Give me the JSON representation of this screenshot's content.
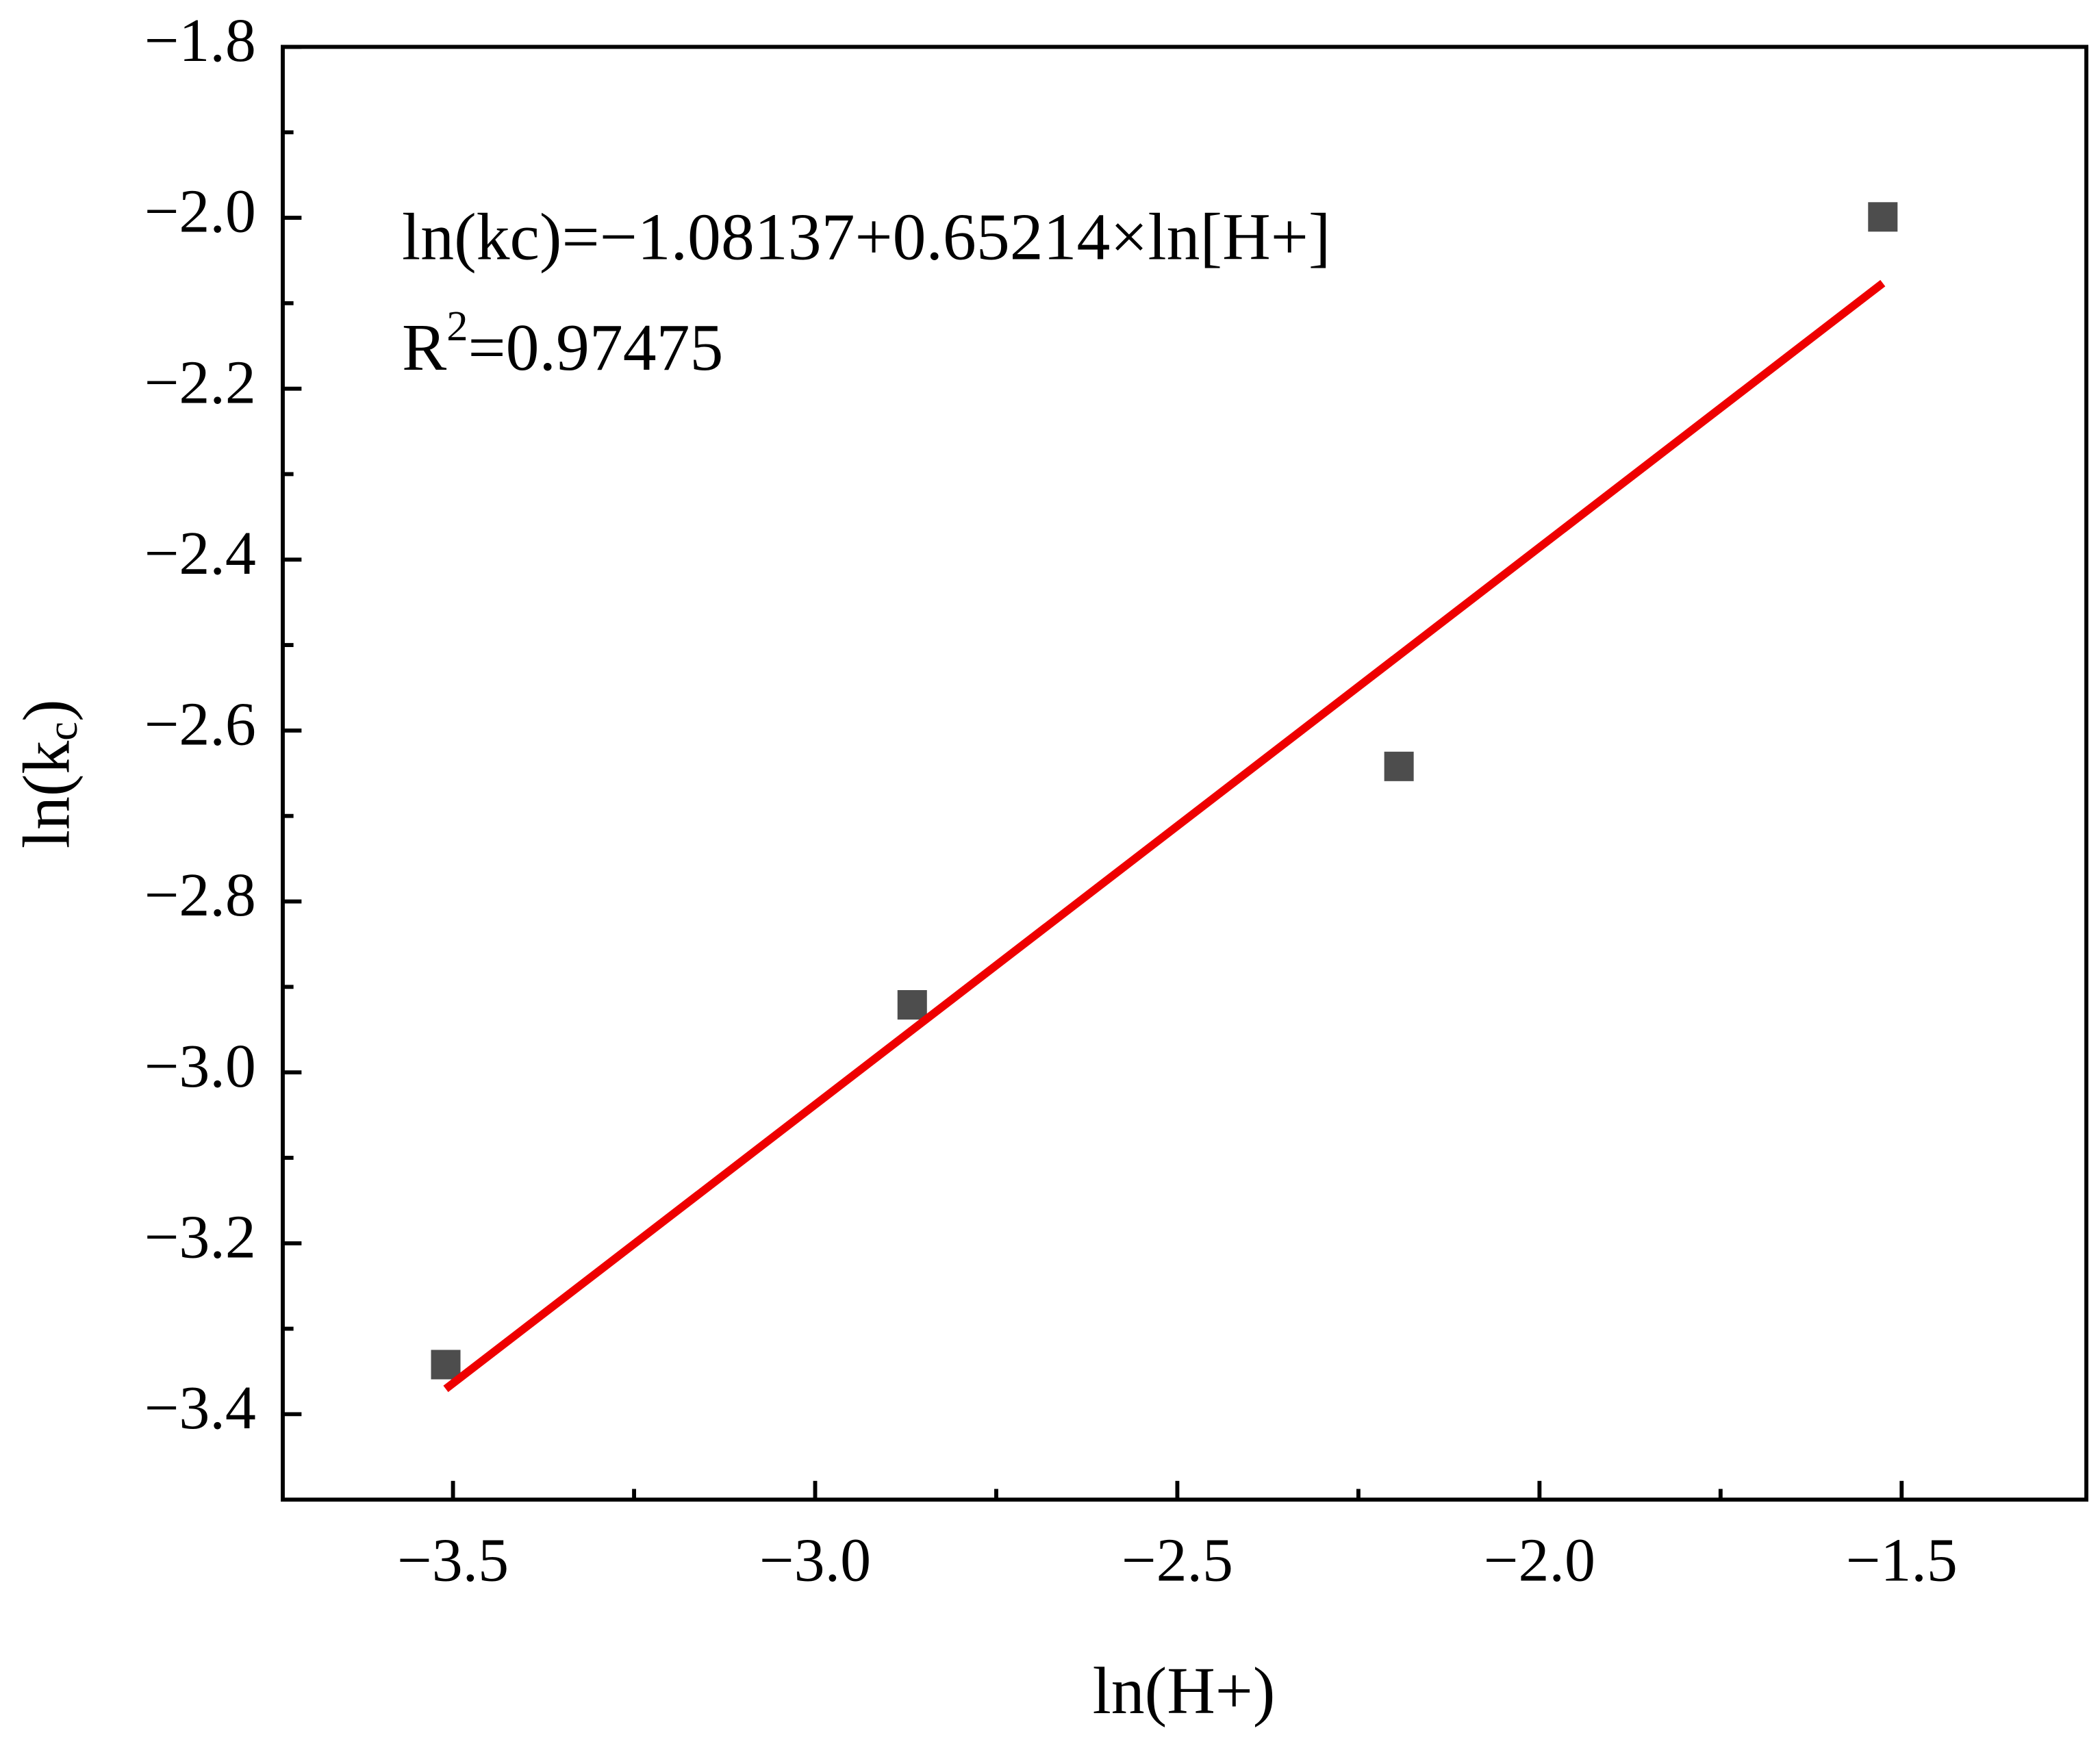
{
  "chart_data": {
    "type": "scatter",
    "xlabel": "ln(H+)",
    "ylabel": {
      "main": "ln(k",
      "sub": "c",
      "end": ")"
    },
    "annotations": {
      "equation": "ln(kc)=−1.08137+0.65214×ln[H+]",
      "r2_prefix": "R",
      "r2_sup": "2",
      "r2_value": "=0.97475"
    },
    "xlim": [
      -3.735,
      -1.245
    ],
    "ylim": [
      -3.5,
      -1.8
    ],
    "xticks": [
      {
        "value": -3.5,
        "label": "−3.5"
      },
      {
        "value": -3.0,
        "label": "−3.0"
      },
      {
        "value": -2.5,
        "label": "−2.5"
      },
      {
        "value": -2.0,
        "label": "−2.0"
      },
      {
        "value": -1.5,
        "label": "−1.5"
      }
    ],
    "yticks": [
      {
        "value": -3.4,
        "label": "−3.4"
      },
      {
        "value": -3.2,
        "label": "−3.2"
      },
      {
        "value": -3.0,
        "label": "−3.0"
      },
      {
        "value": -2.8,
        "label": "−2.8"
      },
      {
        "value": -2.6,
        "label": "−2.6"
      },
      {
        "value": -2.4,
        "label": "−2.4"
      },
      {
        "value": -2.2,
        "label": "−2.2"
      },
      {
        "value": -2.0,
        "label": "−2.0"
      },
      {
        "value": -1.8,
        "label": "−1.8"
      }
    ],
    "xminor": [
      -3.25,
      -2.75,
      -2.25,
      -1.75
    ],
    "yminor": [
      -3.3,
      -3.1,
      -2.9,
      -2.7,
      -2.5,
      -2.3,
      -2.1,
      -1.9
    ],
    "series": [
      {
        "name": "data",
        "kind": "points",
        "color": "#4d4d4d",
        "x": [
          -3.51,
          -2.866,
          -2.194,
          -1.526
        ],
        "values": [
          -3.342,
          -2.921,
          -2.642,
          -1.999
        ]
      },
      {
        "name": "fit",
        "kind": "line",
        "color": "#ee0000",
        "x": [
          -3.51,
          -1.526
        ],
        "values": [
          -3.3704,
          -2.0765
        ]
      }
    ]
  }
}
